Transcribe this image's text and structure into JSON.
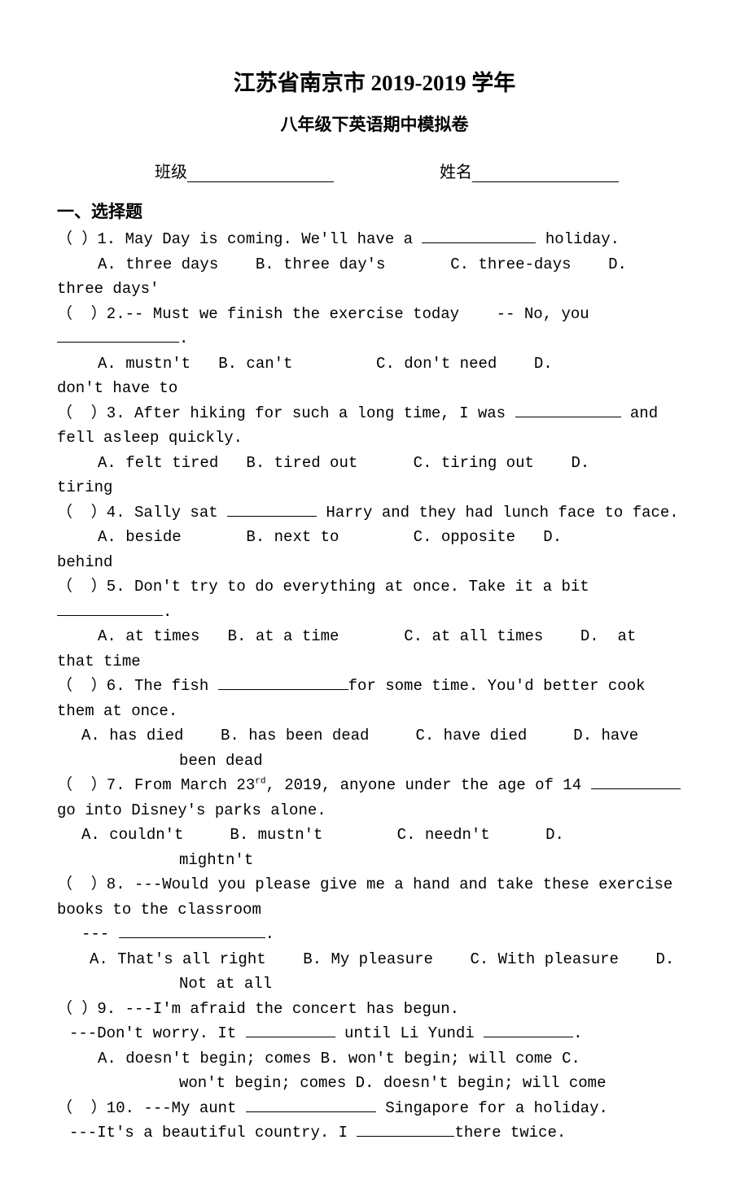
{
  "title_main": "江苏省南京市 2019-2019 学年",
  "title_sub": "八年级下英语期中模拟卷",
  "info": {
    "class_label": "班级",
    "name_label": "姓名"
  },
  "section_heading": "一、选择题",
  "questions": [
    {
      "stem_parts": [
        "（  ）1. May Day is coming. We'll have a ",
        " holiday."
      ],
      "blank_width": 140,
      "options": "A. three days    B. three day's       C. three-days    D. three days'",
      "options_indent": 50,
      "wrap_second_line": "three days'"
    },
    {
      "stem_parts": [
        "（  ）2.-- Must we finish the exercise today    -- No, you ",
        "."
      ],
      "blank_width": 150,
      "stem_wraps": true,
      "options": "A. mustn't   B. can't         C. don't need    D. don't have to",
      "options_indent": 50,
      "wrap_second_line": "don't have to"
    },
    {
      "stem_parts": [
        "（  ）3. After hiking for such a long time, I was ",
        " and fell asleep quickly."
      ],
      "blank_width": 130,
      "stem_wraps": true,
      "options": "A. felt tired   B. tired out      C. tiring out    D. tiring",
      "options_indent": 50,
      "wrap_second_line": "tiring"
    },
    {
      "stem_parts": [
        "（  ）4. Sally sat ",
        " Harry and they had lunch face to face."
      ],
      "blank_width": 110,
      "options": "A. beside       B. next to        C. opposite   D. behind",
      "options_indent": 50,
      "wrap_second_line": "behind"
    },
    {
      "stem_parts": [
        "（  ）5. Don't try to do everything at once. Take it a bit ",
        "."
      ],
      "blank_width": 130,
      "stem_wraps": true,
      "options": "A. at times   B. at a time       C. at all times    D.  at that time",
      "options_indent": 50,
      "wrap_second_line": "that time"
    },
    {
      "stem_parts": [
        "（  ）6. The fish ",
        "for some time. You'd better cook them at once."
      ],
      "blank_width": 160,
      "stem_wraps": true,
      "options": "A. has died    B. has been dead     C. have died     D. have been dead",
      "options_indent": 30,
      "wrap_second_line_indent": "been dead"
    },
    {
      "stem_parts_html": "（  ）7. From March 23<sup>rd</sup>, 2019, anyone under the age of 14 ",
      "stem_end": " go into Disney's parks alone.",
      "blank_width": 110,
      "stem_wraps": true,
      "options": "A. couldn't     B. mustn't        C. needn't      D. mightn't",
      "options_indent": 30,
      "wrap_second_line_indent": "mightn't"
    },
    {
      "stem_line1": "（  ）8. ---Would you please give me a hand and take these exercise books to the classroom",
      "stem_line2_prefix": "--- ",
      "stem_line2_blank": 180,
      "stem_line2_suffix": ".",
      "options": "A. That's all right    B. My pleasure    C. With pleasure    D. Not at all",
      "options_indent": 40,
      "wrap_second_line_indent": "Not at all"
    },
    {
      "stem_line1": "（  ）9. ---I'm afraid the concert has begun.",
      "stem_line2": "---Don't worry. It ",
      "stem_line2_blank1": 110,
      "stem_line2_mid": " until Li Yundi ",
      "stem_line2_blank2": 110,
      "stem_line2_end": ".",
      "options_line1": "A. doesn't begin; comes   B. won't begin; will come    C.",
      "options_line2": "won't begin; comes  D. doesn't begin; will come",
      "options_indent": 50
    },
    {
      "stem_line1_prefix": "（  ）10. ---My aunt ",
      "stem_line1_blank": 160,
      "stem_line1_suffix": " Singapore for a holiday.",
      "stem_line2_prefix": "---It's a beautiful country. I ",
      "stem_line2_blank": 120,
      "stem_line2_suffix": "there twice."
    }
  ],
  "colors": {
    "background": "#ffffff",
    "text": "#000000"
  }
}
